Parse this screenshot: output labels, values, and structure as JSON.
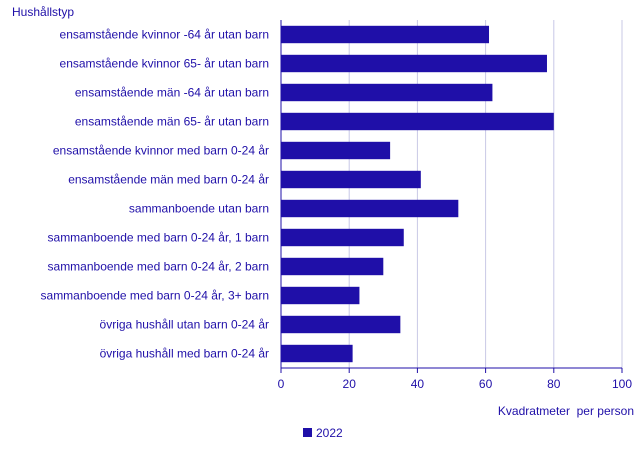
{
  "chart_data": {
    "type": "bar",
    "orientation": "horizontal",
    "title": "",
    "category_axis_title": "Hushållstyp",
    "value_axis_title": "Kvadratmeter  per person",
    "categories": [
      "ensamstående kvinnor -64 år utan barn",
      "ensamstående kvinnor 65- år utan barn",
      "ensamstående män -64 år utan barn",
      "ensamstående män 65- år utan barn",
      "ensamstående kvinnor med barn 0-24 år",
      "ensamstående män med barn 0-24 år",
      "sammanboende utan barn",
      "sammanboende med barn 0-24 år, 1 barn",
      "sammanboende med barn 0-24 år, 2 barn",
      "sammanboende med barn 0-24 år, 3+  barn",
      "övriga hushåll utan barn 0-24 år",
      "övriga hushåll med barn 0-24 år"
    ],
    "series": [
      {
        "name": "2022",
        "color": "#1f0fa8",
        "values": [
          61,
          78,
          62,
          80,
          32,
          41,
          52,
          36,
          30,
          23,
          35,
          21
        ]
      }
    ],
    "xlim": [
      0,
      100
    ],
    "x_ticks": [
      0,
      20,
      40,
      60,
      80,
      100
    ],
    "grid": true,
    "legend_position": "bottom",
    "colors": {
      "text": "#1f0fa8",
      "grid": "#c8c8e6",
      "axis": "#1f0fa8"
    }
  }
}
